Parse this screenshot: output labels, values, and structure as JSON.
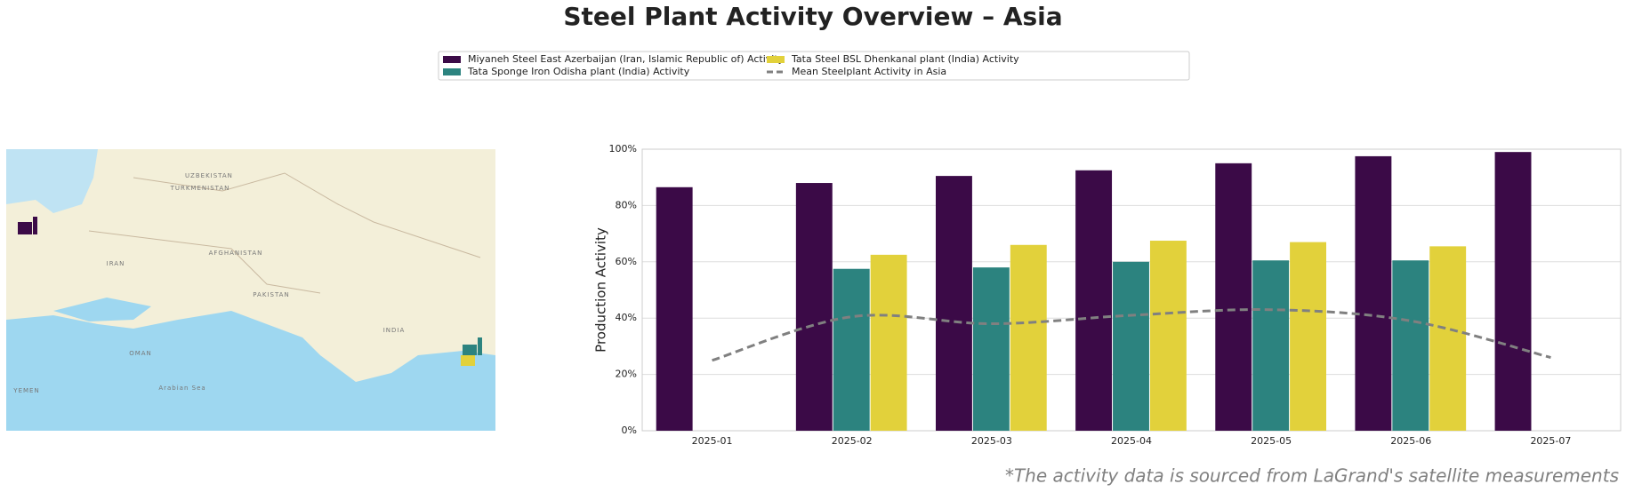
{
  "title": "Steel Plant Activity Overview – Asia",
  "footnote": "*The activity data is sourced from LaGrand's satellite measurements",
  "map": {
    "labels": [
      "TURKMENISTAN",
      "UZBEKISTAN",
      "IRAN",
      "AFGHANISTAN",
      "PAKISTAN",
      "INDIA",
      "OMAN",
      "YEMEN",
      "Arabian Sea"
    ]
  },
  "chart_data": {
    "type": "bar",
    "ylabel": "Production Activity",
    "categories": [
      "2025-01",
      "2025-02",
      "2025-03",
      "2025-04",
      "2025-05",
      "2025-06",
      "2025-07"
    ],
    "series": [
      {
        "name": "Miyaneh Steel East Azerbaijan (Iran, Islamic Republic of) Activity",
        "color": "#3b0a47",
        "values": [
          86.5,
          88,
          90.5,
          92.5,
          95,
          97.5,
          99
        ]
      },
      {
        "name": "Tata Sponge Iron Odisha plant (India) Activity",
        "color": "#2c837f",
        "values": [
          null,
          57.5,
          58,
          60,
          60.5,
          60.5,
          null
        ]
      },
      {
        "name": "Tata Steel BSL Dhenkanal plant (India) Activity",
        "color": "#e2d13b",
        "values": [
          null,
          62.5,
          66,
          67.5,
          67,
          65.5,
          null
        ]
      },
      {
        "name": "Mean Steelplant Activity in Asia",
        "color": "#808080",
        "type": "line",
        "values": [
          25,
          40.5,
          38,
          41,
          43,
          39,
          26
        ]
      }
    ],
    "ylim": [
      0,
      100
    ],
    "yticks": [
      {
        "value": 0,
        "label": "0%"
      },
      {
        "value": 20,
        "label": "20%"
      },
      {
        "value": 40,
        "label": "40%"
      },
      {
        "value": 60,
        "label": "60%"
      },
      {
        "value": 80,
        "label": "80%"
      },
      {
        "value": 100,
        "label": "100%"
      }
    ],
    "grid": true,
    "legend": "top"
  }
}
